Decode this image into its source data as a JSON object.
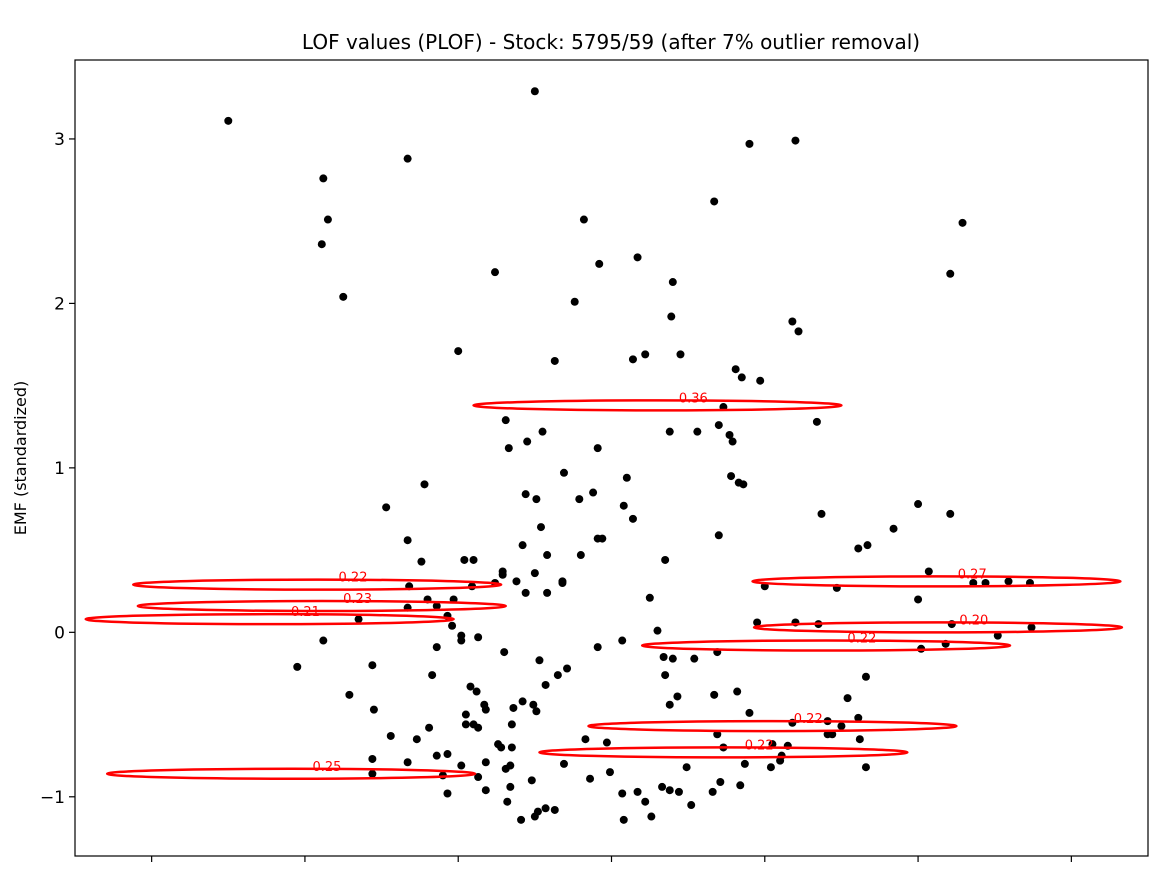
{
  "chart_data": {
    "type": "scatter",
    "title": "LOF values (PLOF) - Stock: 5795/59 (after 7% outlier removal)",
    "ylabel": "EMF (standardized)",
    "xlabel": "",
    "xlim": [
      -0.5,
      6.5
    ],
    "ylim": [
      -1.36,
      3.48
    ],
    "yticks": [
      -1,
      0,
      1,
      2,
      3
    ],
    "xticks": [
      0,
      1,
      2,
      3,
      4,
      5,
      6
    ],
    "grid": false,
    "point_color": "#000000",
    "highlight_color": "#ff0000",
    "points": [
      [
        0.5,
        3.11
      ],
      [
        1.12,
        2.76
      ],
      [
        1.15,
        2.51
      ],
      [
        1.11,
        2.36
      ],
      [
        1.25,
        2.04
      ],
      [
        1.67,
        2.88
      ],
      [
        2.5,
        3.29
      ],
      [
        1.78,
        0.9
      ],
      [
        1.53,
        0.76
      ],
      [
        1.67,
        0.56
      ],
      [
        1.76,
        0.43
      ],
      [
        2.04,
        0.44
      ],
      [
        2.1,
        0.44
      ],
      [
        2.0,
        1.71
      ],
      [
        2.31,
        1.29
      ],
      [
        2.33,
        1.12
      ],
      [
        2.45,
        1.16
      ],
      [
        2.55,
        1.22
      ],
      [
        2.44,
        0.84
      ],
      [
        2.51,
        0.81
      ],
      [
        2.69,
        0.97
      ],
      [
        2.79,
        0.81
      ],
      [
        2.88,
        0.85
      ],
      [
        2.91,
        1.12
      ],
      [
        2.94,
        0.57
      ],
      [
        3.1,
        0.94
      ],
      [
        3.14,
        0.69
      ],
      [
        3.08,
        0.77
      ],
      [
        3.38,
        1.22
      ],
      [
        3.56,
        1.22
      ],
      [
        3.7,
        1.26
      ],
      [
        3.73,
        1.37
      ],
      [
        3.77,
        1.2
      ],
      [
        3.79,
        1.16
      ],
      [
        3.78,
        0.95
      ],
      [
        3.83,
        0.91
      ],
      [
        3.86,
        0.9
      ],
      [
        3.85,
        1.55
      ],
      [
        3.81,
        1.6
      ],
      [
        3.97,
        1.53
      ],
      [
        4.22,
        1.83
      ],
      [
        4.18,
        1.89
      ],
      [
        4.34,
        1.28
      ],
      [
        4.37,
        0.72
      ],
      [
        4.61,
        0.51
      ],
      [
        4.67,
        0.53
      ],
      [
        4.84,
        0.63
      ],
      [
        5.0,
        0.78
      ],
      [
        5.21,
        0.72
      ],
      [
        5.21,
        2.18
      ],
      [
        5.29,
        2.49
      ],
      [
        4.2,
        2.99
      ],
      [
        3.9,
        2.97
      ],
      [
        3.67,
        2.62
      ],
      [
        2.82,
        2.51
      ],
      [
        2.92,
        2.24
      ],
      [
        3.17,
        2.28
      ],
      [
        3.4,
        2.13
      ],
      [
        2.76,
        2.01
      ],
      [
        3.39,
        1.92
      ],
      [
        3.45,
        1.69
      ],
      [
        3.22,
        1.69
      ],
      [
        3.14,
        1.66
      ],
      [
        2.63,
        1.65
      ],
      [
        2.24,
        2.19
      ],
      [
        1.35,
        0.08
      ],
      [
        1.12,
        -0.05
      ],
      [
        0.95,
        -0.21
      ],
      [
        1.44,
        -0.2
      ],
      [
        1.29,
        -0.38
      ],
      [
        1.45,
        -0.47
      ],
      [
        1.56,
        -0.63
      ],
      [
        1.8,
        0.2
      ],
      [
        1.93,
        0.1
      ],
      [
        1.96,
        0.04
      ],
      [
        2.02,
        -0.02
      ],
      [
        1.86,
        -0.09
      ],
      [
        2.02,
        -0.05
      ],
      [
        2.13,
        -0.03
      ],
      [
        2.3,
        -0.12
      ],
      [
        1.83,
        -0.26
      ],
      [
        2.08,
        -0.33
      ],
      [
        2.12,
        -0.36
      ],
      [
        2.05,
        -0.5
      ],
      [
        2.05,
        -0.56
      ],
      [
        2.18,
        -0.47
      ],
      [
        2.42,
        -0.42
      ],
      [
        2.36,
        -0.46
      ],
      [
        2.49,
        -0.44
      ],
      [
        2.51,
        -0.48
      ],
      [
        2.57,
        -0.32
      ],
      [
        2.65,
        -0.26
      ],
      [
        2.71,
        -0.22
      ],
      [
        2.53,
        -0.17
      ],
      [
        2.83,
        -0.65
      ],
      [
        2.97,
        -0.67
      ],
      [
        2.91,
        -0.09
      ],
      [
        3.07,
        -0.05
      ],
      [
        3.3,
        0.01
      ],
      [
        3.4,
        -0.16
      ],
      [
        3.38,
        -0.44
      ],
      [
        3.43,
        -0.39
      ],
      [
        3.35,
        -0.26
      ],
      [
        3.54,
        -0.16
      ],
      [
        3.69,
        -0.12
      ],
      [
        3.67,
        -0.38
      ],
      [
        3.82,
        -0.36
      ],
      [
        3.69,
        -0.62
      ],
      [
        3.73,
        -0.7
      ],
      [
        3.87,
        -0.8
      ],
      [
        4.0,
        0.28
      ],
      [
        4.2,
        0.06
      ],
      [
        4.47,
        0.27
      ],
      [
        4.54,
        -0.4
      ],
      [
        4.61,
        -0.52
      ],
      [
        4.62,
        -0.65
      ],
      [
        4.66,
        -0.82
      ],
      [
        4.44,
        -0.62
      ],
      [
        4.5,
        -0.57
      ],
      [
        4.66,
        -0.27
      ],
      [
        5.0,
        0.2
      ],
      [
        5.02,
        -0.1
      ],
      [
        5.18,
        -0.07
      ],
      [
        5.22,
        0.05
      ],
      [
        5.36,
        0.3
      ],
      [
        5.52,
        -0.02
      ],
      [
        5.73,
        0.3
      ],
      [
        5.74,
        0.03
      ],
      [
        1.44,
        -0.77
      ],
      [
        1.44,
        -0.86
      ],
      [
        1.67,
        -0.79
      ],
      [
        1.73,
        -0.65
      ],
      [
        1.86,
        -0.75
      ],
      [
        1.9,
        -0.87
      ],
      [
        1.93,
        -0.98
      ],
      [
        2.02,
        -0.81
      ],
      [
        2.18,
        -0.79
      ],
      [
        2.13,
        -0.88
      ],
      [
        2.18,
        -0.96
      ],
      [
        2.34,
        -0.94
      ],
      [
        2.32,
        -1.03
      ],
      [
        2.5,
        -1.12
      ],
      [
        2.41,
        -1.14
      ],
      [
        2.52,
        -1.09
      ],
      [
        2.57,
        -1.07
      ],
      [
        2.63,
        -1.08
      ],
      [
        2.48,
        -0.9
      ],
      [
        2.69,
        -0.8
      ],
      [
        2.86,
        -0.89
      ],
      [
        2.99,
        -0.85
      ],
      [
        3.07,
        -0.98
      ],
      [
        3.08,
        -1.14
      ],
      [
        3.17,
        -0.97
      ],
      [
        3.22,
        -1.03
      ],
      [
        3.26,
        -1.12
      ],
      [
        3.33,
        -0.94
      ],
      [
        3.38,
        -0.96
      ],
      [
        3.44,
        -0.97
      ],
      [
        3.49,
        -0.82
      ],
      [
        3.52,
        -1.05
      ],
      [
        3.84,
        -0.93
      ],
      [
        4.1,
        -0.78
      ],
      [
        4.11,
        -0.75
      ],
      [
        4.15,
        -0.69
      ],
      [
        4.18,
        -0.55
      ],
      [
        4.41,
        -0.54
      ],
      [
        4.41,
        -0.62
      ],
      [
        4.05,
        -0.68
      ],
      [
        3.66,
        -0.97
      ],
      [
        2.5,
        0.36
      ],
      [
        2.44,
        0.24
      ],
      [
        2.38,
        0.31
      ],
      [
        2.29,
        0.37
      ],
      [
        2.29,
        0.35
      ],
      [
        2.24,
        0.3
      ],
      [
        2.09,
        0.28
      ],
      [
        1.97,
        0.2
      ],
      [
        1.68,
        0.28
      ],
      [
        1.67,
        0.15
      ],
      [
        1.86,
        0.16
      ],
      [
        2.58,
        0.24
      ],
      [
        2.58,
        0.47
      ],
      [
        2.8,
        0.47
      ],
      [
        2.91,
        0.57
      ],
      [
        2.42,
        0.53
      ],
      [
        2.54,
        0.64
      ],
      [
        2.68,
        0.3
      ],
      [
        2.68,
        0.31
      ],
      [
        3.25,
        0.21
      ],
      [
        3.35,
        0.44
      ],
      [
        3.7,
        0.59
      ],
      [
        3.95,
        0.06
      ],
      [
        4.35,
        0.05
      ],
      [
        5.44,
        0.3
      ],
      [
        5.59,
        0.31
      ],
      [
        5.07,
        0.37
      ],
      [
        3.34,
        -0.15
      ],
      [
        3.9,
        -0.49
      ],
      [
        2.28,
        -0.7
      ],
      [
        2.26,
        -0.68
      ],
      [
        2.31,
        -0.83
      ],
      [
        1.81,
        -0.58
      ],
      [
        2.13,
        -0.58
      ],
      [
        2.35,
        -0.7
      ],
      [
        2.17,
        -0.44
      ],
      [
        2.35,
        -0.56
      ],
      [
        1.93,
        -0.74
      ],
      [
        2.1,
        -0.56
      ],
      [
        2.34,
        -0.81
      ],
      [
        3.71,
        -0.91
      ],
      [
        4.04,
        -0.82
      ]
    ],
    "highlighted": [
      {
        "label": "0.36",
        "x": 3.3,
        "y": 1.38,
        "rx": 1.2,
        "ry": 0.02
      },
      {
        "label": "0.22",
        "x": 1.08,
        "y": 0.29,
        "rx": 1.2,
        "ry": 0.02
      },
      {
        "label": "0.23",
        "x": 1.11,
        "y": 0.16,
        "rx": 1.2,
        "ry": 0.02
      },
      {
        "label": "0.21",
        "x": 0.77,
        "y": 0.08,
        "rx": 1.2,
        "ry": 0.02
      },
      {
        "label": "0.25",
        "x": 0.91,
        "y": -0.86,
        "rx": 1.2,
        "ry": 0.02
      },
      {
        "label": "0.27",
        "x": 5.12,
        "y": 0.31,
        "rx": 1.2,
        "ry": 0.02
      },
      {
        "label": "0.20",
        "x": 5.13,
        "y": 0.03,
        "rx": 1.2,
        "ry": 0.02
      },
      {
        "label": "0.22",
        "x": 4.4,
        "y": -0.08,
        "rx": 1.2,
        "ry": 0.02
      },
      {
        "label": "0.22",
        "x": 4.05,
        "y": -0.57,
        "rx": 1.2,
        "ry": 0.02
      },
      {
        "label": "0.22",
        "x": 3.73,
        "y": -0.73,
        "rx": 1.2,
        "ry": 0.02
      }
    ]
  }
}
